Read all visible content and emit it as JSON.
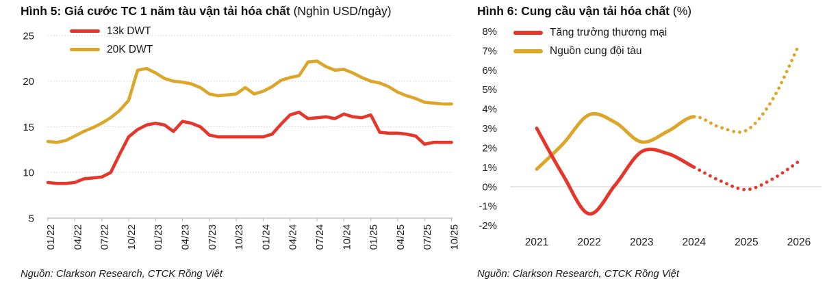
{
  "colors": {
    "red": "#E4362B",
    "gold": "#DCA62A",
    "grid": "#c9c9c9",
    "axis": "#b9b9b9",
    "zero_line": "#cfcfcf",
    "text": "#161616"
  },
  "chart_data": [
    {
      "id": "fig5",
      "type": "line",
      "title": "Hình 5: Giá cước TC 1 năm tàu vận tải hóa chất",
      "title_unit": "(Nghìn USD/ngày)",
      "ylabel": "Nghìn USD/ngày",
      "ylim": [
        5,
        25
      ],
      "yticks": [
        5,
        10,
        15,
        20,
        25
      ],
      "grid": "dotted-horizontal",
      "legend_position": "top-left-inside",
      "x_tick_labels": [
        "01/22",
        "04/22",
        "07/22",
        "10/22",
        "01/23",
        "04/23",
        "07/23",
        "10/23",
        "01/24",
        "04/24",
        "07/24",
        "10/24",
        "01/25",
        "04/25",
        "07/25",
        "10/25"
      ],
      "points_per_tick": 3,
      "x_frequency": "monthly",
      "series": [
        {
          "name": "13k DWT",
          "color": "#E4362B",
          "values": [
            8.9,
            8.8,
            8.8,
            8.9,
            9.3,
            9.4,
            9.5,
            10.0,
            12.0,
            13.9,
            14.7,
            15.2,
            15.4,
            15.2,
            14.5,
            15.6,
            15.4,
            15.0,
            14.1,
            13.9,
            13.9,
            13.9,
            13.9,
            13.9,
            13.9,
            14.2,
            15.3,
            16.3,
            16.6,
            15.9,
            16.0,
            16.1,
            15.9,
            16.4,
            16.1,
            16.0,
            16.3,
            14.4,
            14.3,
            14.3,
            14.2,
            14.0,
            13.1,
            13.3,
            13.3,
            13.3
          ]
        },
        {
          "name": "20K DWT",
          "color": "#DCA62A",
          "values": [
            13.4,
            13.3,
            13.5,
            14.0,
            14.5,
            14.9,
            15.4,
            16.0,
            16.8,
            17.9,
            21.2,
            21.4,
            20.9,
            20.3,
            20.0,
            19.9,
            19.7,
            19.3,
            18.6,
            18.4,
            18.5,
            18.6,
            19.3,
            18.6,
            18.9,
            19.4,
            20.1,
            20.4,
            20.6,
            22.1,
            22.2,
            21.6,
            21.2,
            21.3,
            20.9,
            20.4,
            20.0,
            19.8,
            19.4,
            18.8,
            18.4,
            18.1,
            17.7,
            17.6,
            17.5,
            17.5
          ]
        }
      ],
      "source": "Nguồn: Clarkson Research, CTCK Rồng Việt"
    },
    {
      "id": "fig6",
      "type": "line",
      "title": "Hình 6: Cung cầu vận tải hóa chất",
      "title_unit": "(%)",
      "ylabel": "%",
      "ylim": [
        -2,
        8
      ],
      "ytick_step": 1,
      "ytick_suffix": "%",
      "grid": "zero-line-only",
      "legend_position": "top-left-inside",
      "x_tick_labels": [
        "2021",
        "2022",
        "2023",
        "2024",
        "2025",
        "2026"
      ],
      "x": [
        2021,
        2021.5,
        2022,
        2022.5,
        2023,
        2023.5,
        2024,
        2024.5,
        2025,
        2025.5,
        2026
      ],
      "dotted_after_x": 2024,
      "dotted_meaning": "forecast",
      "series": [
        {
          "name": "Tăng trưởng thương mại",
          "color": "#E4362B",
          "values": [
            3.0,
            0.6,
            -1.4,
            0.1,
            1.8,
            1.7,
            1.0,
            0.3,
            -0.15,
            0.4,
            1.3
          ]
        },
        {
          "name": "Nguồn cung đội tàu",
          "color": "#DCA62A",
          "values": [
            0.9,
            2.2,
            3.7,
            3.3,
            2.3,
            2.85,
            3.6,
            3.05,
            2.9,
            4.5,
            7.3
          ]
        }
      ],
      "source": "Nguồn: Clarkson Research, CTCK Rồng Việt"
    }
  ]
}
